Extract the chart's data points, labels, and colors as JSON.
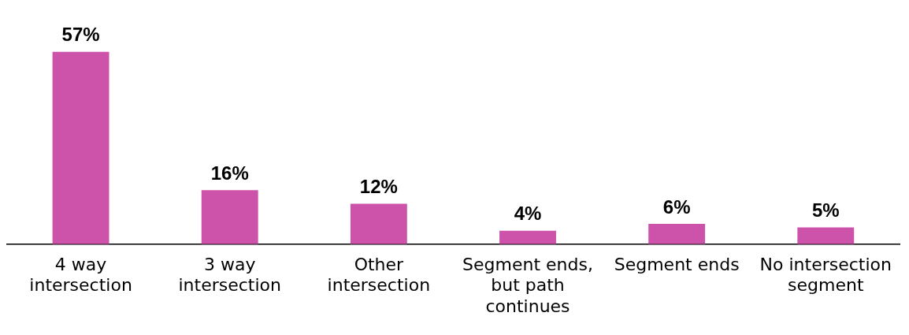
{
  "chart_data": {
    "type": "bar",
    "categories": [
      "4 way intersection",
      "3 way intersection",
      "Other intersection",
      "Segment ends, but path continues",
      "Segment ends",
      "No intersection segment"
    ],
    "values": [
      57,
      16,
      12,
      4,
      6,
      5
    ],
    "value_labels": [
      "57%",
      "16%",
      "12%",
      "4%",
      "6%",
      "5%"
    ],
    "color": "#cc52aa",
    "grid": false,
    "legend": false
  }
}
